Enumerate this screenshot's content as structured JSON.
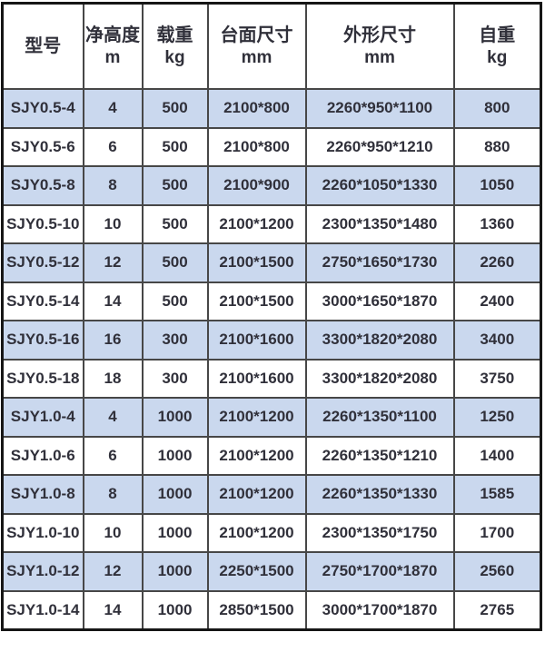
{
  "table": {
    "columns": [
      {
        "label": "型号",
        "unit": ""
      },
      {
        "label": "净高度",
        "unit": "m"
      },
      {
        "label": "载重",
        "unit": "kg"
      },
      {
        "label": "台面尺寸",
        "unit": "mm"
      },
      {
        "label": "外形尺寸",
        "unit": "mm"
      },
      {
        "label": "自重",
        "unit": "kg"
      }
    ],
    "rows": [
      [
        "SJY0.5-4",
        "4",
        "500",
        "2100*800",
        "2260*950*1100",
        "800"
      ],
      [
        "SJY0.5-6",
        "6",
        "500",
        "2100*800",
        "2260*950*1210",
        "880"
      ],
      [
        "SJY0.5-8",
        "8",
        "500",
        "2100*900",
        "2260*1050*1330",
        "1050"
      ],
      [
        "SJY0.5-10",
        "10",
        "500",
        "2100*1200",
        "2300*1350*1480",
        "1360"
      ],
      [
        "SJY0.5-12",
        "12",
        "500",
        "2100*1500",
        "2750*1650*1730",
        "2260"
      ],
      [
        "SJY0.5-14",
        "14",
        "500",
        "2100*1500",
        "3000*1650*1870",
        "2400"
      ],
      [
        "SJY0.5-16",
        "16",
        "300",
        "2100*1600",
        "3300*1820*2080",
        "3400"
      ],
      [
        "SJY0.5-18",
        "18",
        "300",
        "2100*1600",
        "3300*1820*2080",
        "3750"
      ],
      [
        "SJY1.0-4",
        "4",
        "1000",
        "2100*1200",
        "2260*1350*1100",
        "1250"
      ],
      [
        "SJY1.0-6",
        "6",
        "1000",
        "2100*1200",
        "2260*1350*1210",
        "1400"
      ],
      [
        "SJY1.0-8",
        "8",
        "1000",
        "2100*1200",
        "2260*1350*1330",
        "1585"
      ],
      [
        "SJY1.0-10",
        "10",
        "1000",
        "2100*1200",
        "2300*1350*1750",
        "1700"
      ],
      [
        "SJY1.0-12",
        "12",
        "1000",
        "2250*1500",
        "2750*1700*1870",
        "2560"
      ],
      [
        "SJY1.0-14",
        "14",
        "1000",
        "2850*1500",
        "3000*1700*1870",
        "2765"
      ]
    ]
  },
  "colors": {
    "row_alt_bg": "#cad8ee",
    "row_bg": "#ffffff",
    "header_bg": "#ffffff",
    "text": "#30303a",
    "inner_border": "#474747",
    "outer_border": "#161616"
  }
}
